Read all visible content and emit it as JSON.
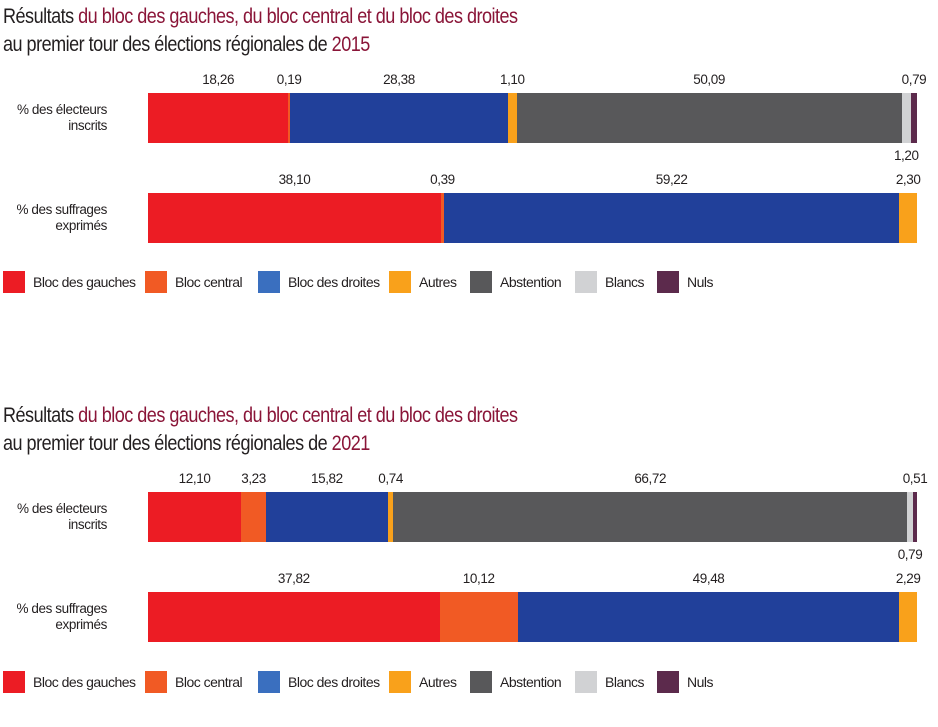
{
  "colors": {
    "bloc_gauches": "#ec1c24",
    "bloc_central": "#f15a24",
    "bloc_droites_legend": "#3a6fbf",
    "bloc_droites_bar": "#21409a",
    "autres": "#f9a11b",
    "abstention": "#58585a",
    "blancs": "#d1d2d4",
    "nuls": "#5c2a4c",
    "title_accent": "#8a1538"
  },
  "legend": [
    {
      "key": "bloc_gauches",
      "label": "Bloc des gauches"
    },
    {
      "key": "bloc_central",
      "label": "Bloc central"
    },
    {
      "key": "bloc_droites",
      "label": "Bloc des droites"
    },
    {
      "key": "autres",
      "label": "Autres"
    },
    {
      "key": "abstention",
      "label": "Abstention"
    },
    {
      "key": "blancs",
      "label": "Blancs"
    },
    {
      "key": "nuls",
      "label": "Nuls"
    }
  ],
  "chart_data": [
    {
      "type": "bar",
      "orientation": "horizontal-stacked",
      "title_prefix": "Résultats ",
      "title_highlight": "du bloc des gauches, du bloc central et du bloc des droites",
      "subtitle_prefix": "au premier tour des élections régionales de ",
      "subtitle_highlight": "2015",
      "categories": [
        "% des électeurs inscrits",
        "% des suffrages exprimés"
      ],
      "category_lines": [
        [
          "% des électeurs",
          "inscrits"
        ],
        [
          "% des suffrages",
          "exprimés"
        ]
      ],
      "series_keys": [
        "bloc_gauches",
        "bloc_central",
        "bloc_droites",
        "autres",
        "abstention",
        "blancs",
        "nuls"
      ],
      "rows": [
        {
          "values": [
            18.26,
            0.19,
            28.38,
            1.1,
            50.09,
            1.2,
            0.79
          ],
          "labels": [
            "18,26",
            "0,19",
            "28,38",
            "1,10",
            "50,09",
            "1,20",
            "0,79"
          ],
          "label_below": [
            false,
            false,
            false,
            false,
            false,
            true,
            false
          ]
        },
        {
          "values": [
            38.1,
            0.39,
            59.22,
            2.3,
            0,
            0,
            0
          ],
          "labels": [
            "38,10",
            "0,39",
            "59,22",
            "2,30",
            "",
            "",
            ""
          ],
          "label_below": [
            false,
            false,
            false,
            false,
            false,
            false,
            false
          ]
        }
      ],
      "xlim": [
        0,
        100
      ]
    },
    {
      "type": "bar",
      "orientation": "horizontal-stacked",
      "title_prefix": "Résultats ",
      "title_highlight": "du bloc des gauches, du bloc central et du bloc des droites",
      "subtitle_prefix": "au premier tour des élections régionales de ",
      "subtitle_highlight": "2021",
      "categories": [
        "% des électeurs inscrits",
        "% des suffrages exprimés"
      ],
      "category_lines": [
        [
          "% des électeurs",
          "inscrits"
        ],
        [
          "% des suffrages",
          "exprimés"
        ]
      ],
      "series_keys": [
        "bloc_gauches",
        "bloc_central",
        "bloc_droites",
        "autres",
        "abstention",
        "blancs",
        "nuls"
      ],
      "rows": [
        {
          "values": [
            12.1,
            3.23,
            15.82,
            0.74,
            66.72,
            0.79,
            0.51
          ],
          "labels": [
            "12,10",
            "3,23",
            "15,82",
            "0,74",
            "66,72",
            "0,79",
            "0,51"
          ],
          "label_below": [
            false,
            false,
            false,
            false,
            false,
            true,
            false
          ]
        },
        {
          "values": [
            37.82,
            10.12,
            49.48,
            2.29,
            0,
            0,
            0
          ],
          "labels": [
            "37,82",
            "10,12",
            "49,48",
            "2,29",
            "",
            "",
            ""
          ],
          "label_below": [
            false,
            false,
            false,
            false,
            false,
            false,
            false
          ]
        }
      ],
      "xlim": [
        0,
        100
      ]
    }
  ]
}
